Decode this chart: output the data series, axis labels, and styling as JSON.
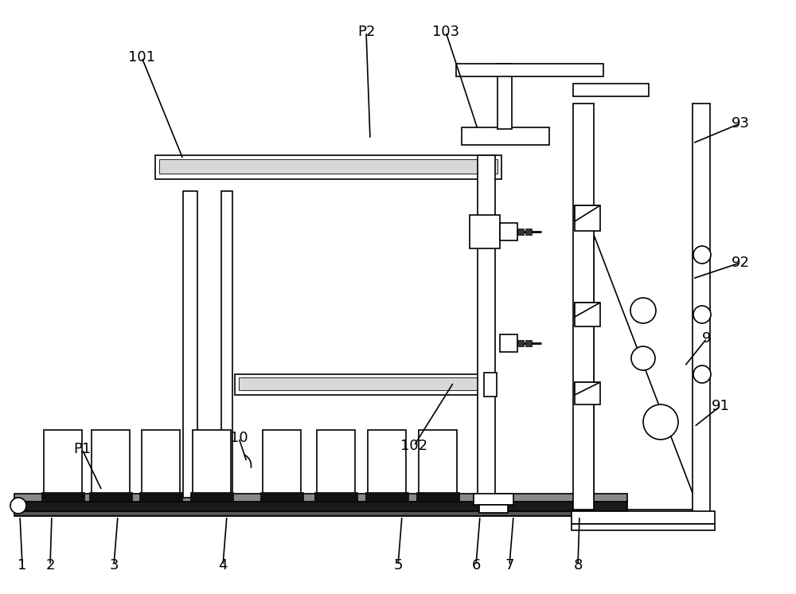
{
  "bg": "#ffffff",
  "lc": "#000000",
  "lw": 1.2,
  "fig_w": 10.0,
  "fig_h": 7.46
}
